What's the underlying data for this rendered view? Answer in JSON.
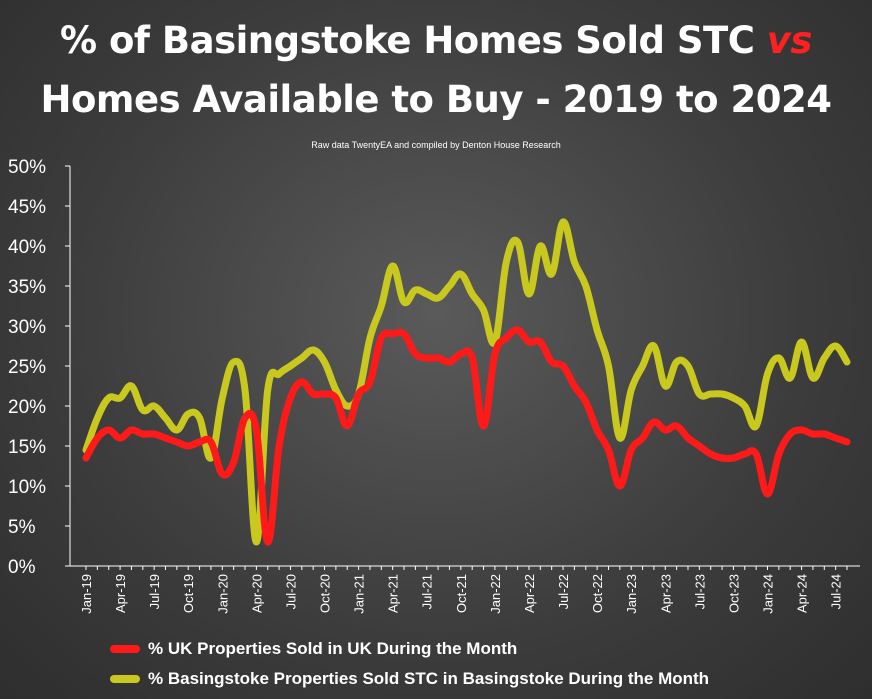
{
  "title": {
    "line1_pre": "% of Basingstoke Homes Sold STC ",
    "line1_vs": "vs",
    "line2": "Homes Available to Buy - 2019 to 2024"
  },
  "subtitle": "Raw data TwentyEA and compiled by Denton House Research",
  "colors": {
    "uk": "#ff1a1a",
    "basingstoke": "#c8c81e",
    "axis": "#ffffff"
  },
  "chart_data": {
    "type": "line",
    "title": "% of Basingstoke Homes Sold STC vs Homes Available to Buy - 2019 to 2024",
    "ylim": [
      0,
      50
    ],
    "y_ticks": [
      "0%",
      "5%",
      "10%",
      "15%",
      "20%",
      "25%",
      "30%",
      "35%",
      "40%",
      "45%",
      "50%"
    ],
    "x_tick_labels": [
      "Jan-19",
      "Apr-19",
      "Jul-19",
      "Oct-19",
      "Jan-20",
      "Apr-20",
      "Jul-20",
      "Oct-20",
      "Jan-21",
      "Apr-21",
      "Jul-21",
      "Oct-21",
      "Jan-22",
      "Apr-22",
      "Jul-22",
      "Oct-22",
      "Jan-23",
      "Apr-23",
      "Jul-23",
      "Oct-23",
      "Jan-24",
      "Apr-24",
      "Jul-24"
    ],
    "x": [
      "Jan-19",
      "Feb-19",
      "Mar-19",
      "Apr-19",
      "May-19",
      "Jun-19",
      "Jul-19",
      "Aug-19",
      "Sep-19",
      "Oct-19",
      "Nov-19",
      "Dec-19",
      "Jan-20",
      "Feb-20",
      "Mar-20",
      "Apr-20",
      "May-20",
      "Jun-20",
      "Jul-20",
      "Aug-20",
      "Sep-20",
      "Oct-20",
      "Nov-20",
      "Dec-20",
      "Jan-21",
      "Feb-21",
      "Mar-21",
      "Apr-21",
      "May-21",
      "Jun-21",
      "Jul-21",
      "Aug-21",
      "Sep-21",
      "Oct-21",
      "Nov-21",
      "Dec-21",
      "Jan-22",
      "Feb-22",
      "Mar-22",
      "Apr-22",
      "May-22",
      "Jun-22",
      "Jul-22",
      "Aug-22",
      "Sep-22",
      "Oct-22",
      "Nov-22",
      "Dec-22",
      "Jan-23",
      "Feb-23",
      "Mar-23",
      "Apr-23",
      "May-23",
      "Jun-23",
      "Jul-23",
      "Aug-23",
      "Sep-23",
      "Oct-23",
      "Nov-23",
      "Dec-23",
      "Jan-24",
      "Feb-24",
      "Mar-24",
      "Apr-24",
      "May-24",
      "Jun-24",
      "Jul-24",
      "Aug-24"
    ],
    "grid": false,
    "legend_position": "bottom",
    "series": [
      {
        "name": "% UK Properties Sold in UK During the Month",
        "color": "#ff1a1a",
        "values": [
          13.5,
          16,
          17,
          16,
          17,
          16.5,
          16.5,
          16,
          15.5,
          15,
          15.5,
          15.5,
          11.5,
          13,
          18.5,
          17,
          3,
          15,
          21,
          23,
          21.5,
          21.5,
          21,
          17.5,
          21.5,
          23,
          28.5,
          29,
          29,
          26.5,
          26,
          26,
          25.5,
          26.5,
          26,
          17.5,
          26.5,
          28.5,
          29.5,
          28,
          28,
          25.5,
          25,
          22.5,
          20.5,
          17,
          14.5,
          10,
          14.5,
          16,
          18,
          17,
          17.5,
          16,
          15,
          14,
          13.5,
          13.5,
          14,
          14,
          9,
          14,
          16.5,
          17,
          16.5,
          16.5,
          16,
          15.5
        ]
      },
      {
        "name": "% Basingstoke Properties Sold STC in Basingstoke During the Month",
        "color": "#c8c81e",
        "values": [
          14.5,
          18.5,
          21,
          21,
          22.5,
          19.5,
          20,
          18.5,
          17,
          19,
          18.5,
          13.5,
          21,
          25.5,
          22,
          3,
          22,
          24,
          25,
          26,
          27,
          25.5,
          22,
          20,
          21.5,
          28.5,
          32.5,
          37.5,
          33,
          34.5,
          34,
          33.5,
          35,
          36.5,
          34,
          32,
          28,
          38,
          40.5,
          34,
          40,
          36.5,
          43,
          38,
          35,
          29.5,
          25,
          16,
          22,
          25,
          27.5,
          22.5,
          25.5,
          25,
          21.5,
          21.5,
          21.5,
          21,
          20,
          17.5,
          24,
          26,
          23.5,
          28,
          23.5,
          26,
          27.5,
          25.5
        ]
      }
    ]
  }
}
